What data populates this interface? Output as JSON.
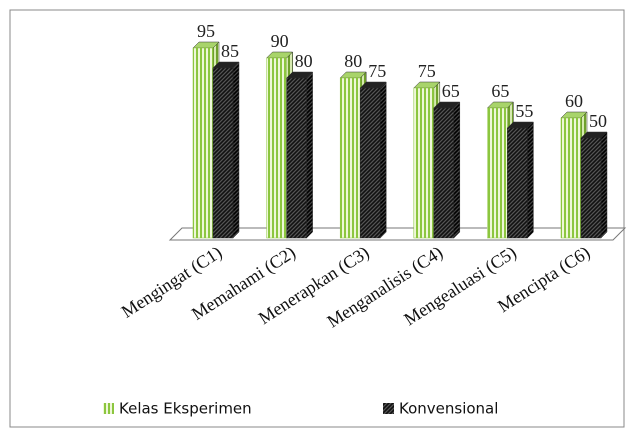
{
  "chart_data": {
    "type": "bar3d",
    "categories": [
      "Mengingat (C1)",
      "Memahami (C2)",
      "Menerapkan (C3)",
      "Menganalisis (C4)",
      "Mengealuasi (C5)",
      "Mencipta (C6)"
    ],
    "series": [
      {
        "name": "Kelas Eksperimen",
        "color": "#8cc63f",
        "values": [
          95,
          90,
          80,
          75,
          65,
          60
        ]
      },
      {
        "name": "Konvensional",
        "color": "#333333",
        "values": [
          85,
          80,
          75,
          65,
          55,
          50
        ]
      }
    ],
    "ylim": [
      0,
      100
    ],
    "legend": "bottom"
  }
}
